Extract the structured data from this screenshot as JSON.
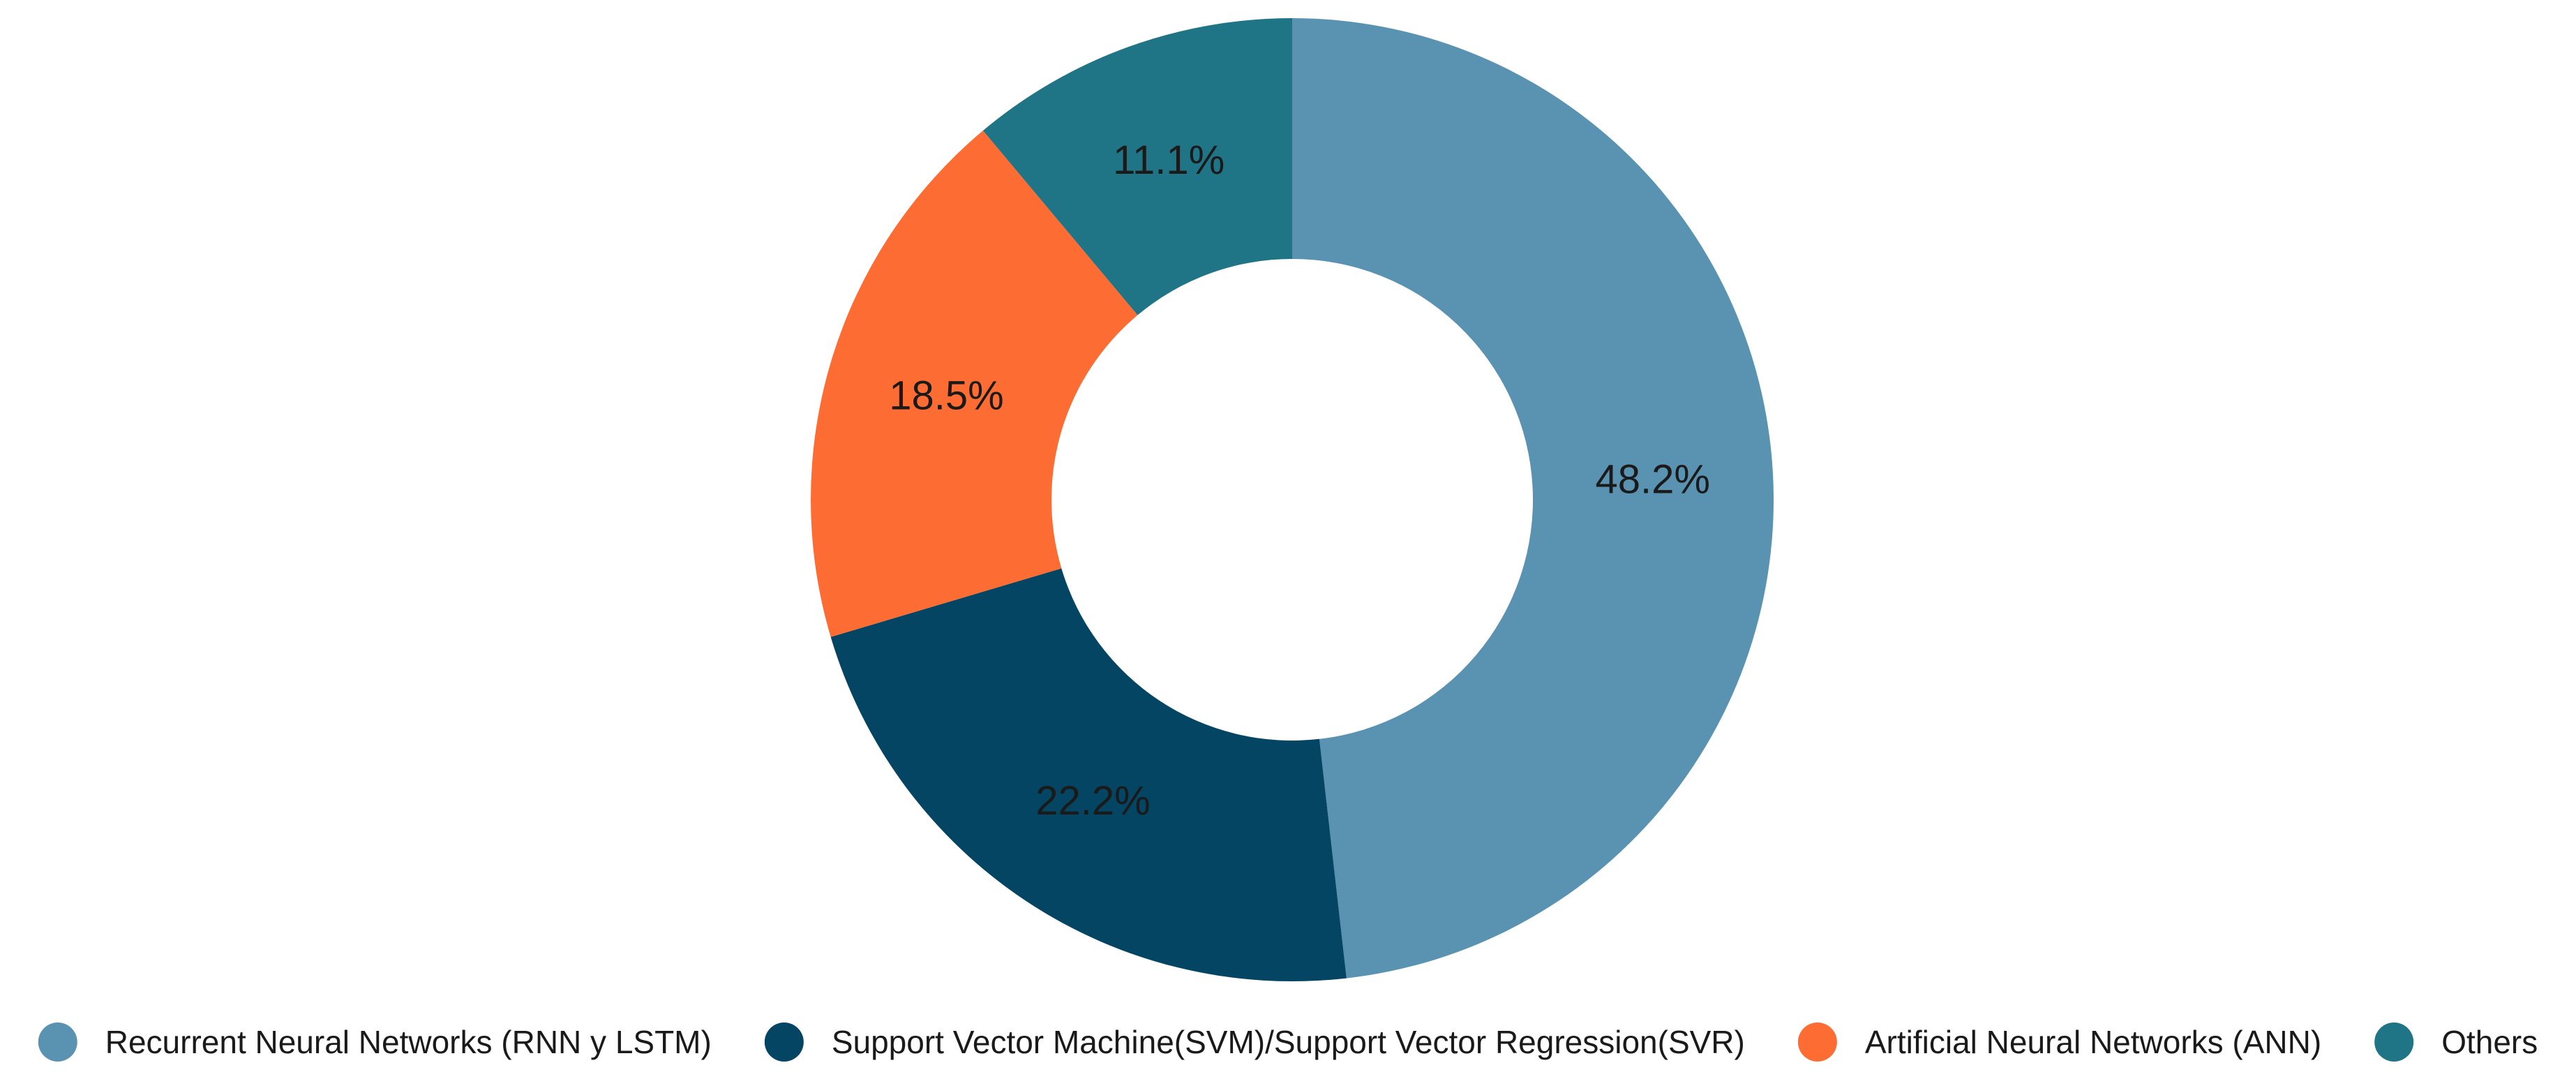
{
  "chart_data": {
    "type": "pie",
    "donut": true,
    "start_angle_deg": 0,
    "direction": "clockwise",
    "legend_position": "bottom",
    "slices": [
      {
        "label": "Recurrent Neural Networks (RNN y LSTM)",
        "value": 48.2,
        "display": "48.2%",
        "color": "#5a93b1"
      },
      {
        "label": "Support Vector Machine(SVM)/Support Vector Regression(SVR)",
        "value": 22.2,
        "display": "22.2%",
        "color": "#034562"
      },
      {
        "label": "Artificial Neural Networks (ANN)",
        "value": 18.5,
        "display": "18.5%",
        "color": "#fd6d33"
      },
      {
        "label": "Others",
        "value": 11.1,
        "display": "11.1%",
        "color": "#1f7485"
      }
    ]
  }
}
